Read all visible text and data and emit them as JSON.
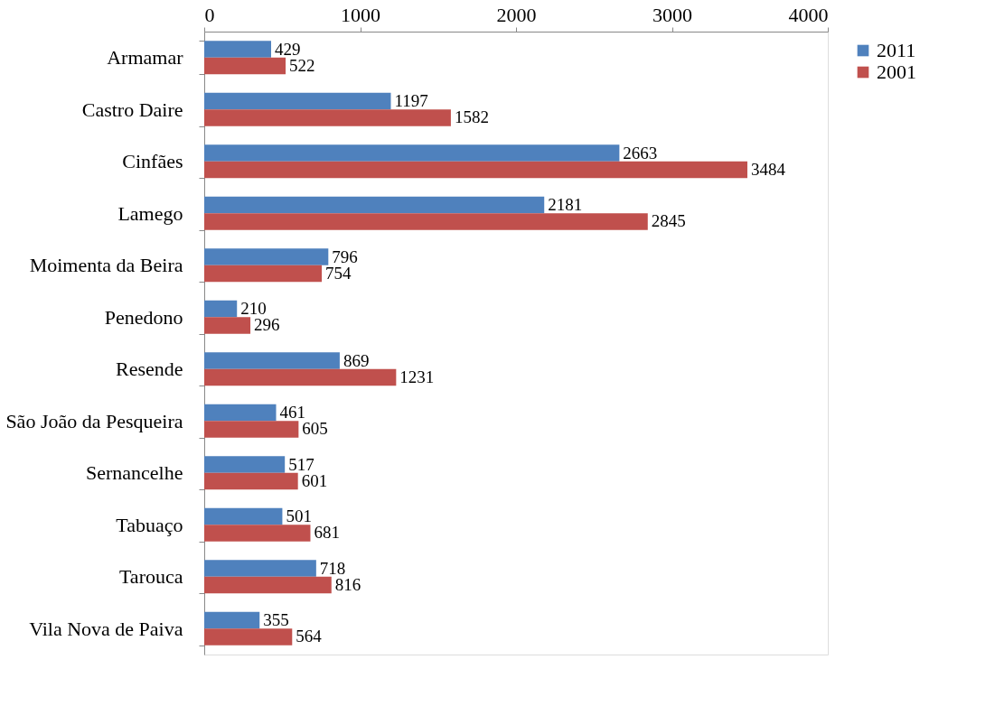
{
  "chart_data": {
    "type": "bar",
    "orientation": "horizontal",
    "categories": [
      "Armamar",
      "Castro Daire",
      "Cinfães",
      "Lamego",
      "Moimenta da Beira",
      "Penedono",
      "Resende",
      "São João da Pesqueira",
      "Sernancelhe",
      "Tabuaço",
      "Tarouca",
      "Vila Nova de Paiva"
    ],
    "series": [
      {
        "name": "2011",
        "color": "#4f81bd",
        "values": [
          429,
          1197,
          2663,
          2181,
          796,
          210,
          869,
          461,
          517,
          501,
          718,
          355
        ]
      },
      {
        "name": "2001",
        "color": "#c0504d",
        "values": [
          522,
          1582,
          3484,
          2845,
          754,
          296,
          1231,
          605,
          601,
          681,
          816,
          564
        ]
      }
    ],
    "xlim": [
      0,
      4000
    ],
    "xticks": [
      0,
      1000,
      2000,
      3000,
      4000
    ],
    "grid": false,
    "legend": "right",
    "data_labels": true
  }
}
